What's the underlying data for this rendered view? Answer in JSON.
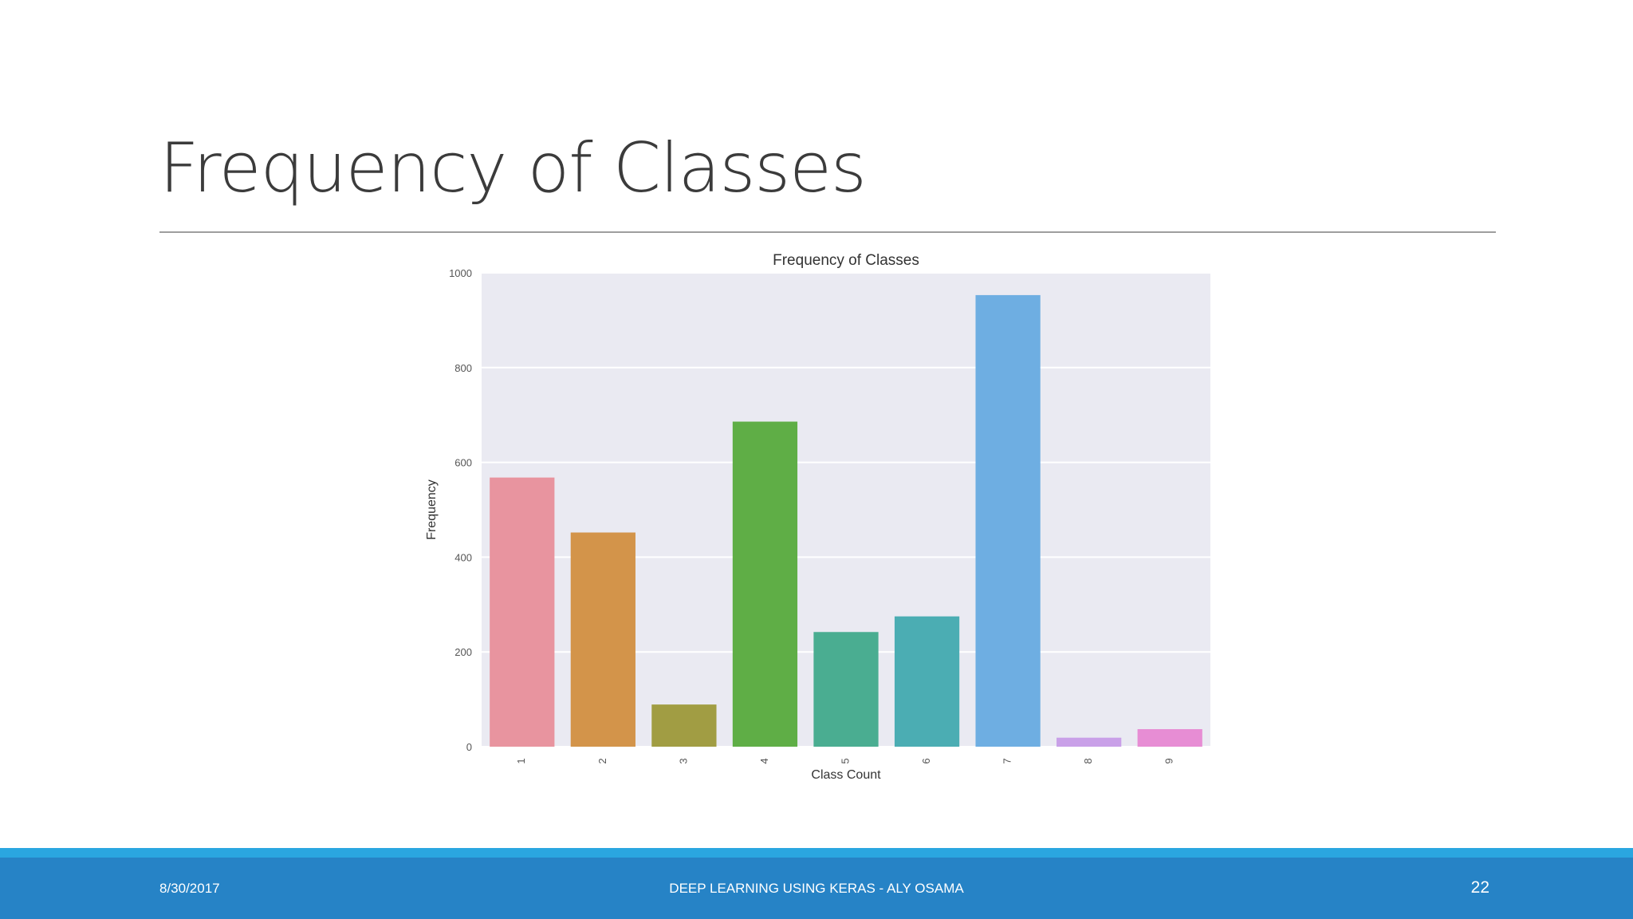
{
  "slide": {
    "title": "Frequency of Classes"
  },
  "footer": {
    "date": "8/30/2017",
    "center_text": "DEEP LEARNING USING KERAS - ALY OSAMA",
    "page_number": "22"
  },
  "colors": {
    "footer_bar": "#2683c6",
    "footer_stripe": "#2aa6e0",
    "plot_background": "#eaeaf2"
  },
  "chart_data": {
    "type": "bar",
    "title": "Frequency of Classes",
    "xlabel": "Class Count",
    "ylabel": "Frequency",
    "categories": [
      "1",
      "2",
      "3",
      "4",
      "5",
      "6",
      "7",
      "8",
      "9"
    ],
    "values": [
      568,
      452,
      89,
      686,
      242,
      275,
      953,
      19,
      37
    ],
    "colors": [
      "#e8949f",
      "#d3944a",
      "#a19d43",
      "#5fae46",
      "#4aad91",
      "#4badb3",
      "#6eaee2",
      "#c9a0e8",
      "#e78dd4"
    ],
    "ylim": [
      0,
      1000
    ],
    "yticks": [
      0,
      200,
      400,
      600,
      800,
      1000
    ],
    "grid": true,
    "legend": "none"
  }
}
